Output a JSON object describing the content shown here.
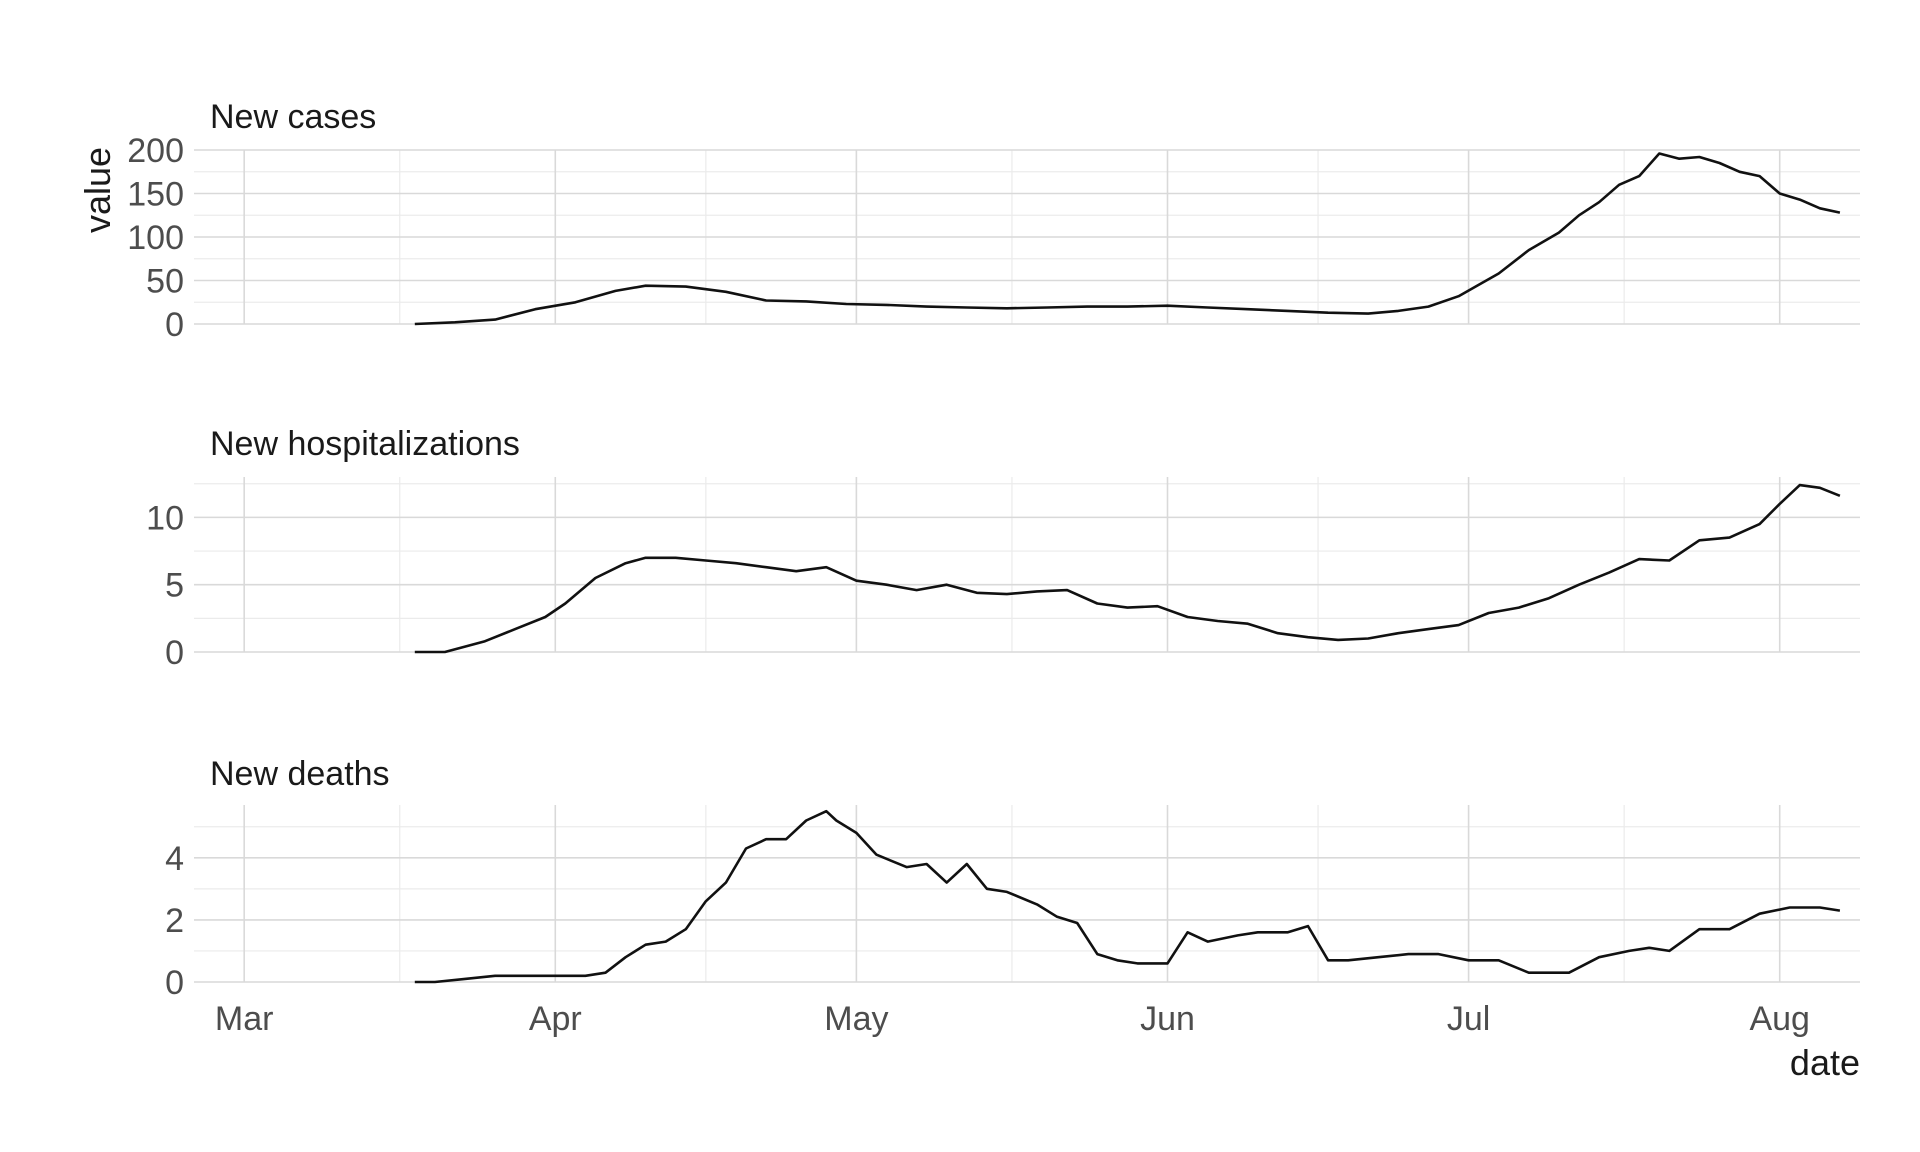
{
  "chart_data": [
    {
      "type": "line",
      "title": "New cases",
      "xlabel": "date",
      "ylabel": "value",
      "x_tick_labels": [
        "Mar",
        "Apr",
        "May",
        "Jun",
        "Jul",
        "Aug"
      ],
      "y_ticks": [
        0,
        50,
        100,
        150,
        200
      ],
      "ylim": [
        0,
        200
      ],
      "xlim": [
        "2020-02-25",
        "2020-08-09"
      ],
      "grid": true,
      "series": [
        {
          "x": [
            "2020-03-18",
            "2020-03-22",
            "2020-03-26",
            "2020-03-30",
            "2020-04-03",
            "2020-04-07",
            "2020-04-10",
            "2020-04-14",
            "2020-04-18",
            "2020-04-22",
            "2020-04-26",
            "2020-04-30",
            "2020-05-04",
            "2020-05-08",
            "2020-05-12",
            "2020-05-16",
            "2020-05-20",
            "2020-05-24",
            "2020-05-28",
            "2020-06-01",
            "2020-06-05",
            "2020-06-09",
            "2020-06-13",
            "2020-06-17",
            "2020-06-21",
            "2020-06-24",
            "2020-06-27",
            "2020-06-30",
            "2020-07-02",
            "2020-07-04",
            "2020-07-07",
            "2020-07-10",
            "2020-07-12",
            "2020-07-14",
            "2020-07-16",
            "2020-07-18",
            "2020-07-20",
            "2020-07-22",
            "2020-07-24",
            "2020-07-26",
            "2020-07-28",
            "2020-07-30",
            "2020-08-01",
            "2020-08-03",
            "2020-08-05",
            "2020-08-07"
          ],
          "values": [
            0,
            2,
            5,
            17,
            25,
            38,
            44,
            43,
            37,
            27,
            26,
            23,
            22,
            20,
            19,
            18,
            19,
            20,
            20,
            21,
            19,
            17,
            15,
            13,
            12,
            15,
            20,
            32,
            45,
            58,
            85,
            105,
            125,
            140,
            160,
            170,
            196,
            190,
            192,
            185,
            175,
            170,
            150,
            143,
            133,
            128
          ]
        }
      ]
    },
    {
      "type": "line",
      "title": "New hospitalizations",
      "y_ticks": [
        0,
        5,
        10
      ],
      "ylim": [
        0,
        13
      ],
      "xlim": [
        "2020-02-25",
        "2020-08-09"
      ],
      "grid": true,
      "series": [
        {
          "x": [
            "2020-03-18",
            "2020-03-21",
            "2020-03-23",
            "2020-03-25",
            "2020-03-28",
            "2020-03-31",
            "2020-04-02",
            "2020-04-05",
            "2020-04-08",
            "2020-04-10",
            "2020-04-13",
            "2020-04-16",
            "2020-04-19",
            "2020-04-22",
            "2020-04-25",
            "2020-04-28",
            "2020-05-01",
            "2020-05-04",
            "2020-05-07",
            "2020-05-10",
            "2020-05-13",
            "2020-05-16",
            "2020-05-19",
            "2020-05-22",
            "2020-05-25",
            "2020-05-28",
            "2020-05-31",
            "2020-06-03",
            "2020-06-06",
            "2020-06-09",
            "2020-06-12",
            "2020-06-15",
            "2020-06-18",
            "2020-06-21",
            "2020-06-24",
            "2020-06-27",
            "2020-06-30",
            "2020-07-03",
            "2020-07-06",
            "2020-07-09",
            "2020-07-12",
            "2020-07-15",
            "2020-07-18",
            "2020-07-21",
            "2020-07-24",
            "2020-07-27",
            "2020-07-30",
            "2020-08-01",
            "2020-08-03",
            "2020-08-05",
            "2020-08-07"
          ],
          "values": [
            0,
            0,
            0.4,
            0.8,
            1.7,
            2.6,
            3.6,
            5.5,
            6.6,
            7.0,
            7.0,
            6.8,
            6.6,
            6.3,
            6.0,
            6.3,
            5.3,
            5.0,
            4.6,
            5.0,
            4.4,
            4.3,
            4.5,
            4.6,
            3.6,
            3.3,
            3.4,
            2.6,
            2.3,
            2.1,
            1.4,
            1.1,
            0.9,
            1.0,
            1.4,
            1.7,
            2.0,
            2.9,
            3.3,
            4.0,
            5.0,
            5.9,
            6.9,
            6.8,
            8.3,
            8.5,
            9.5,
            11.0,
            12.4,
            12.2,
            11.6
          ]
        }
      ]
    },
    {
      "type": "line",
      "title": "New deaths",
      "y_ticks": [
        0,
        2,
        4
      ],
      "ylim": [
        0,
        5.7
      ],
      "xlim": [
        "2020-02-25",
        "2020-08-09"
      ],
      "grid": true,
      "series": [
        {
          "x": [
            "2020-03-18",
            "2020-03-20",
            "2020-03-23",
            "2020-03-26",
            "2020-04-01",
            "2020-04-04",
            "2020-04-06",
            "2020-04-08",
            "2020-04-10",
            "2020-04-12",
            "2020-04-14",
            "2020-04-16",
            "2020-04-18",
            "2020-04-20",
            "2020-04-22",
            "2020-04-24",
            "2020-04-26",
            "2020-04-28",
            "2020-04-29",
            "2020-05-01",
            "2020-05-03",
            "2020-05-06",
            "2020-05-08",
            "2020-05-10",
            "2020-05-12",
            "2020-05-14",
            "2020-05-16",
            "2020-05-19",
            "2020-05-21",
            "2020-05-23",
            "2020-05-25",
            "2020-05-27",
            "2020-05-29",
            "2020-06-01",
            "2020-06-03",
            "2020-06-05",
            "2020-06-08",
            "2020-06-10",
            "2020-06-13",
            "2020-06-15",
            "2020-06-17",
            "2020-06-19",
            "2020-06-22",
            "2020-06-25",
            "2020-06-28",
            "2020-07-01",
            "2020-07-04",
            "2020-07-07",
            "2020-07-09",
            "2020-07-11",
            "2020-07-14",
            "2020-07-17",
            "2020-07-19",
            "2020-07-21",
            "2020-07-24",
            "2020-07-27",
            "2020-07-30",
            "2020-08-02",
            "2020-08-05",
            "2020-08-07"
          ],
          "values": [
            0,
            0,
            0.1,
            0.2,
            0.2,
            0.2,
            0.3,
            0.8,
            1.2,
            1.3,
            1.7,
            2.6,
            3.2,
            4.3,
            4.6,
            4.6,
            5.2,
            5.5,
            5.2,
            4.8,
            4.1,
            3.7,
            3.8,
            3.2,
            3.8,
            3.0,
            2.9,
            2.5,
            2.1,
            1.9,
            0.9,
            0.7,
            0.6,
            0.6,
            1.6,
            1.3,
            1.5,
            1.6,
            1.6,
            1.8,
            0.7,
            0.7,
            0.8,
            0.9,
            0.9,
            0.7,
            0.7,
            0.3,
            0.3,
            0.3,
            0.8,
            1.0,
            1.1,
            1.0,
            1.7,
            1.7,
            2.2,
            2.4,
            2.4,
            2.3
          ]
        }
      ]
    }
  ]
}
